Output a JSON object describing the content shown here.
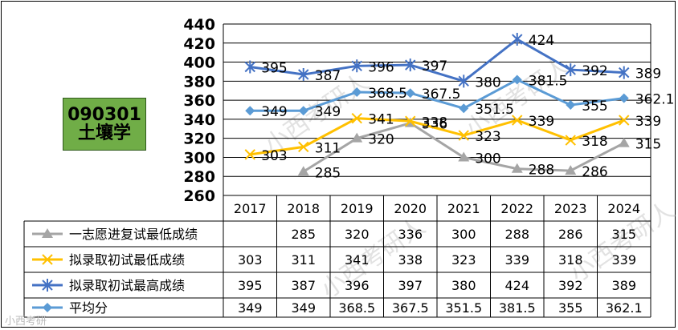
{
  "badge": {
    "code": "090301",
    "name": "土壤学"
  },
  "watermark": "小西考研人",
  "credit": "小西考研",
  "chart_data": {
    "type": "line",
    "title": "",
    "xlabel": "",
    "ylabel": "",
    "ylim": [
      260,
      440
    ],
    "yticks": [
      260,
      280,
      300,
      320,
      340,
      360,
      380,
      400,
      420,
      440
    ],
    "grid": true,
    "legend": "data-table",
    "categories": [
      "2017",
      "2018",
      "2019",
      "2020",
      "2021",
      "2022",
      "2023",
      "2024"
    ],
    "series": [
      {
        "name": "一志愿进复试最低成绩",
        "color": "#a5a5a5",
        "marker": "triangle",
        "values": [
          null,
          285,
          320,
          336,
          300,
          288,
          286,
          315
        ],
        "labels": [
          "",
          "285",
          "320",
          "336",
          "300",
          "288",
          "286",
          "315"
        ]
      },
      {
        "name": "拟录取初试最低成绩",
        "color": "#ffc000",
        "marker": "x",
        "values": [
          303,
          311,
          341,
          338,
          323,
          339,
          318,
          339
        ],
        "labels": [
          "303",
          "311",
          "341",
          "338",
          "323",
          "339",
          "318",
          "339"
        ]
      },
      {
        "name": "拟录取初试最高成绩",
        "color": "#4472c4",
        "marker": "star",
        "values": [
          395,
          387,
          396,
          397,
          380,
          424,
          392,
          389
        ],
        "labels": [
          "395",
          "387",
          "396",
          "397",
          "380",
          "424",
          "392",
          "389"
        ]
      },
      {
        "name": "平均分",
        "color": "#5b9bd5",
        "marker": "diamond",
        "values": [
          349,
          349,
          368.5,
          367.5,
          351.5,
          381.5,
          355,
          362.1
        ],
        "labels": [
          "349",
          "349",
          "368.5",
          "367.5",
          "351.5",
          "381.5",
          "355",
          "362.1"
        ]
      }
    ]
  }
}
